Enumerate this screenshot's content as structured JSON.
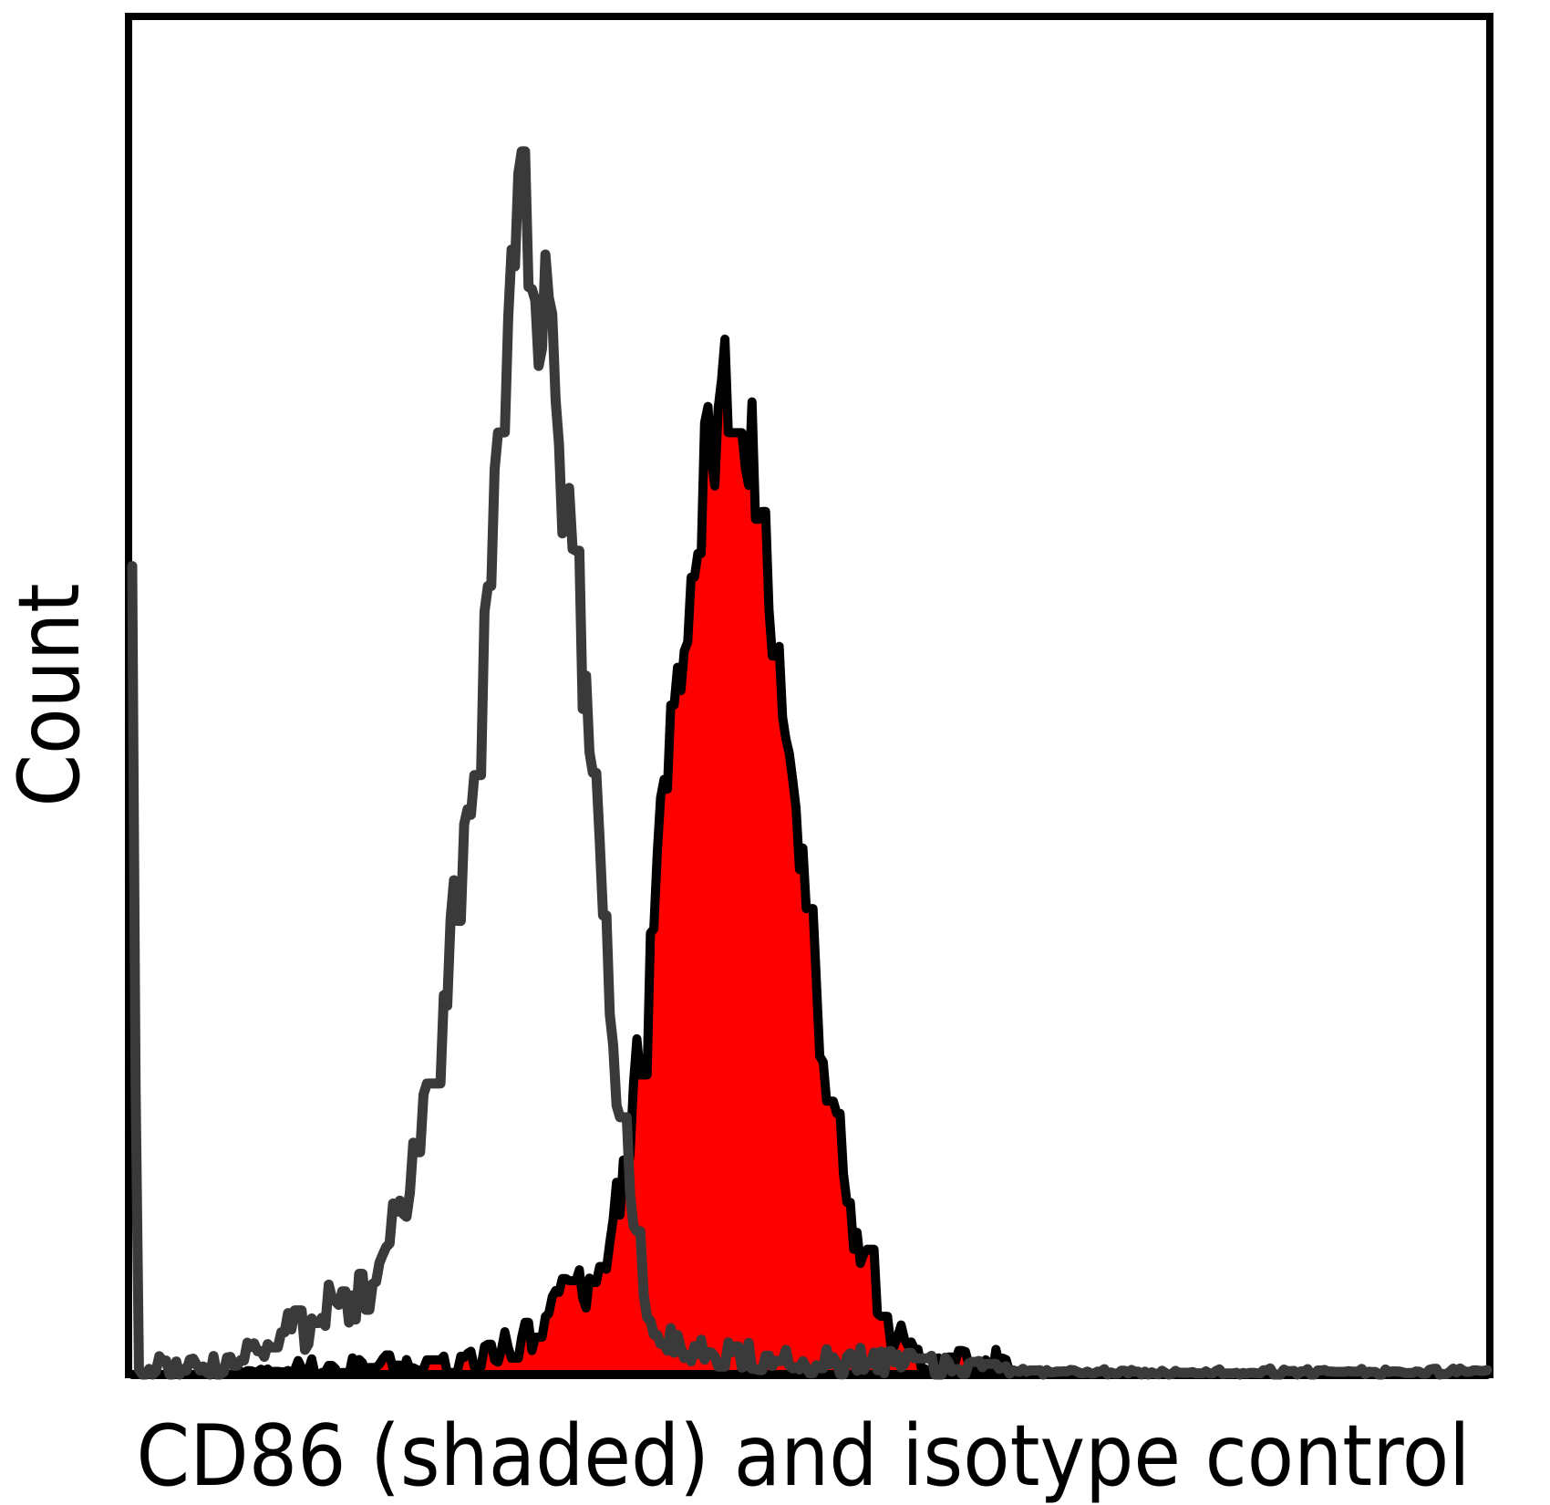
{
  "chart_data": {
    "type": "area",
    "chart_kind": "flow-cytometry-overlay-histogram",
    "title": "",
    "xlabel": "CD86 (shaded) and isotype control",
    "ylabel": "Count",
    "axes": {
      "ticks": "none",
      "frame": true,
      "frame_color": "#000000",
      "background": "#ffffff",
      "x_range_norm": [
        0,
        1
      ],
      "y_range_norm": [
        0,
        1
      ]
    },
    "legend": "none",
    "series": [
      {
        "name": "CD86 (shaded)",
        "role": "shaded-histogram",
        "fill_color": "#fe0000",
        "line_color": "#000000",
        "line_width": 10,
        "peak_x_norm": 0.447,
        "peak_height_norm": 0.74,
        "envelope": [
          [
            0.0,
            0.0
          ],
          [
            0.07,
            0.0
          ],
          [
            0.08,
            0.001
          ],
          [
            0.14,
            0.004
          ],
          [
            0.19,
            0.006
          ],
          [
            0.23,
            0.009
          ],
          [
            0.26,
            0.013
          ],
          [
            0.28,
            0.022
          ],
          [
            0.3,
            0.032
          ],
          [
            0.316,
            0.07
          ],
          [
            0.325,
            0.095
          ],
          [
            0.333,
            0.05
          ],
          [
            0.343,
            0.065
          ],
          [
            0.352,
            0.1
          ],
          [
            0.36,
            0.13
          ],
          [
            0.37,
            0.2
          ],
          [
            0.377,
            0.26
          ],
          [
            0.386,
            0.35
          ],
          [
            0.394,
            0.43
          ],
          [
            0.404,
            0.52
          ],
          [
            0.413,
            0.6
          ],
          [
            0.421,
            0.655
          ],
          [
            0.43,
            0.7
          ],
          [
            0.44,
            0.725
          ],
          [
            0.447,
            0.74
          ],
          [
            0.455,
            0.7
          ],
          [
            0.462,
            0.665
          ],
          [
            0.47,
            0.585
          ],
          [
            0.478,
            0.51
          ],
          [
            0.487,
            0.43
          ],
          [
            0.495,
            0.355
          ],
          [
            0.505,
            0.27
          ],
          [
            0.515,
            0.2
          ],
          [
            0.525,
            0.145
          ],
          [
            0.535,
            0.1
          ],
          [
            0.545,
            0.068
          ],
          [
            0.558,
            0.038
          ],
          [
            0.572,
            0.018
          ],
          [
            0.585,
            0.006
          ],
          [
            0.602,
            0.01
          ],
          [
            0.625,
            0.007
          ],
          [
            0.644,
            0.014
          ],
          [
            0.655,
            0.002
          ],
          [
            0.675,
            0.0
          ],
          [
            1.0,
            0.0
          ]
        ]
      },
      {
        "name": "isotype control",
        "role": "open-histogram",
        "fill_color": "none",
        "line_color": "#3a3a3a",
        "line_width": 11,
        "peak_x_norm": 0.287,
        "peak_height_norm": 0.9,
        "left_edge_spike_height_norm": 0.58,
        "envelope": [
          [
            0.0,
            0.58
          ],
          [
            0.0015,
            0.58
          ],
          [
            0.003,
            0.005
          ],
          [
            0.07,
            0.006
          ],
          [
            0.1,
            0.025
          ],
          [
            0.112,
            0.042
          ],
          [
            0.125,
            0.028
          ],
          [
            0.145,
            0.052
          ],
          [
            0.165,
            0.055
          ],
          [
            0.185,
            0.08
          ],
          [
            0.2,
            0.13
          ],
          [
            0.213,
            0.18
          ],
          [
            0.227,
            0.25
          ],
          [
            0.24,
            0.36
          ],
          [
            0.252,
            0.45
          ],
          [
            0.262,
            0.56
          ],
          [
            0.272,
            0.7
          ],
          [
            0.281,
            0.8
          ],
          [
            0.287,
            0.9
          ],
          [
            0.293,
            0.82
          ],
          [
            0.3,
            0.78
          ],
          [
            0.306,
            0.83
          ],
          [
            0.312,
            0.76
          ],
          [
            0.318,
            0.65
          ],
          [
            0.325,
            0.6
          ],
          [
            0.332,
            0.53
          ],
          [
            0.34,
            0.45
          ],
          [
            0.348,
            0.33
          ],
          [
            0.355,
            0.24
          ],
          [
            0.362,
            0.16
          ],
          [
            0.37,
            0.105
          ],
          [
            0.378,
            0.06
          ],
          [
            0.39,
            0.028
          ],
          [
            0.41,
            0.016
          ],
          [
            0.45,
            0.014
          ],
          [
            0.5,
            0.011
          ],
          [
            0.56,
            0.009
          ],
          [
            0.62,
            0.006
          ],
          [
            0.655,
            0.002
          ],
          [
            1.0,
            0.002
          ]
        ]
      }
    ],
    "noise": {
      "seed": 11,
      "steps": 400,
      "base": 0.005,
      "sqrt_scale": 0.05,
      "hold_probability": 0.22
    }
  }
}
